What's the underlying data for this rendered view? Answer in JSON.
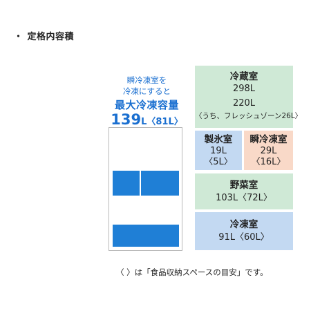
{
  "heading": {
    "bullet": "・",
    "title": "定格内容積"
  },
  "promo": {
    "line1": "瞬冷凍室を",
    "line2": "冷凍にすると",
    "headline": "最大冷凍容量",
    "capacity_number": "139",
    "capacity_unit": "L",
    "capacity_note": "〈81L〉"
  },
  "compartments": {
    "refrigerator": {
      "label": "冷蔵室",
      "total": "298L",
      "usable": "220L",
      "fresh_zone": "〈うち、フレッシュゾーン26L〉"
    },
    "ice": {
      "label": "製氷室",
      "total": "19L",
      "usable": "〈5L〉"
    },
    "instant_freezer": {
      "label": "瞬冷凍室",
      "total": "29L",
      "usable": "〈16L〉"
    },
    "vegetable": {
      "label": "野菜室",
      "value": "103L〈72L〉"
    },
    "freezer": {
      "label": "冷凍室",
      "value": "91L〈60L〉"
    }
  },
  "footnote": "〈 〉は「食品収納スペースの目安」です。",
  "colors": {
    "accent_blue": "#1f7fd6",
    "green_box": "#cfe9d6",
    "blue_box": "#c3d9f2",
    "peach_box": "#f9d9c8"
  }
}
